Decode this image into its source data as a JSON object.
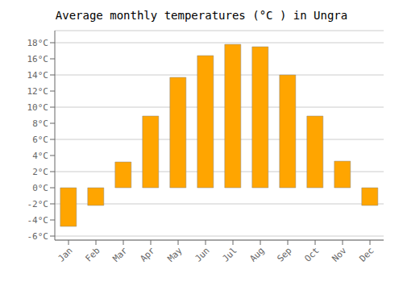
{
  "chart_data": {
    "type": "bar",
    "title": "Average monthly temperatures (°C ) in Ungra",
    "categories": [
      "Jan",
      "Feb",
      "Mar",
      "Apr",
      "May",
      "Jun",
      "Jul",
      "Aug",
      "Sep",
      "Oct",
      "Nov",
      "Dec"
    ],
    "values": [
      -4.8,
      -2.2,
      3.2,
      8.9,
      13.7,
      16.4,
      17.8,
      17.5,
      14.0,
      8.9,
      3.3,
      -2.2
    ],
    "color": "#FFA500",
    "ylim": [
      -6.5,
      19.5
    ],
    "yticks": [
      {
        "value": -6,
        "label": "-6°C"
      },
      {
        "value": -4,
        "label": "-4°C"
      },
      {
        "value": -2,
        "label": "-2°C"
      },
      {
        "value": 0,
        "label": "0°C"
      },
      {
        "value": 2,
        "label": "2°C"
      },
      {
        "value": 4,
        "label": "4°C"
      },
      {
        "value": 6,
        "label": "6°C"
      },
      {
        "value": 8,
        "label": "8°C"
      },
      {
        "value": 10,
        "label": "10°C"
      },
      {
        "value": 12,
        "label": "12°C"
      },
      {
        "value": 14,
        "label": "14°C"
      },
      {
        "value": 16,
        "label": "16°C"
      },
      {
        "value": 18,
        "label": "18°C"
      }
    ],
    "grid": true
  }
}
